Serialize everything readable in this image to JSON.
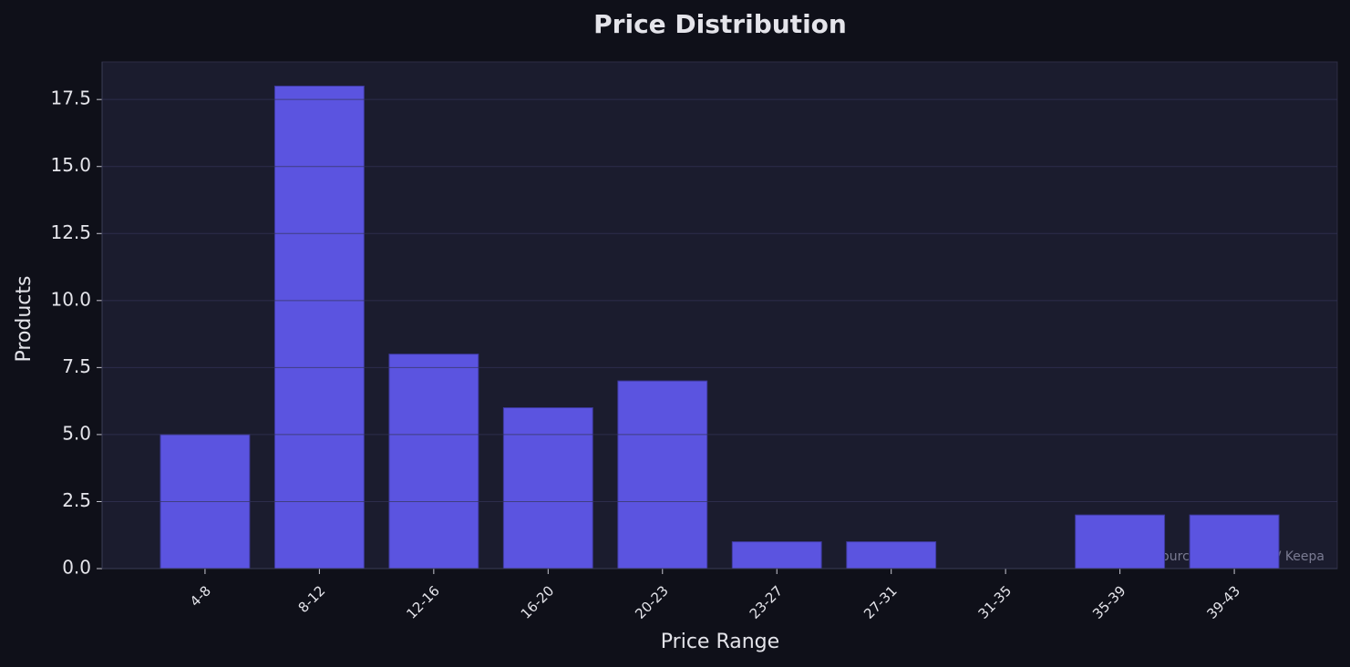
{
  "chart_data": {
    "type": "bar",
    "title": "Price Distribution",
    "x_label": "Price Range",
    "y_label": "Products",
    "categories": [
      "4-8",
      "8-12",
      "12-16",
      "16-20",
      "20-23",
      "23-27",
      "27-31",
      "31-35",
      "35-39",
      "39-43"
    ],
    "values": [
      5,
      18,
      8,
      6,
      7,
      1,
      1,
      0,
      2,
      2
    ],
    "color": "#5b54e0",
    "ylim": [
      0,
      18.9
    ],
    "yticks": [
      {
        "value": 0,
        "label": "0.0"
      },
      2.5,
      {
        "value": 5,
        "label": "5.0"
      },
      7.5,
      {
        "value": 10,
        "label": "10.0"
      },
      12.5,
      {
        "value": 15,
        "label": "15.0"
      },
      17.5
    ],
    "grid": true,
    "annotation": "Source: AgentXray / Keepa"
  }
}
